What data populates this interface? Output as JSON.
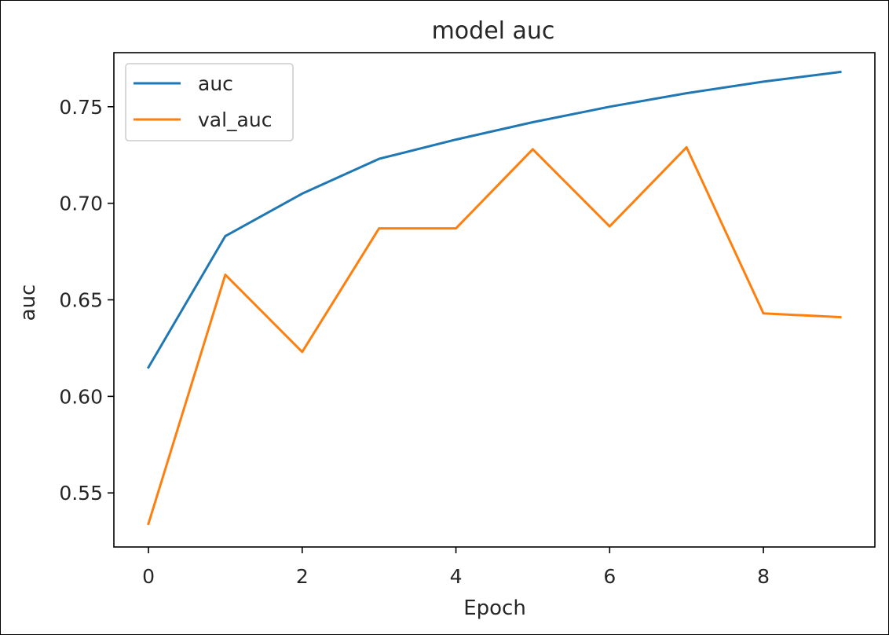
{
  "chart_data": {
    "type": "line",
    "title": "model auc",
    "xlabel": "Epoch",
    "ylabel": "auc",
    "xlim": [
      -0.45,
      9.45
    ],
    "ylim": [
      0.522,
      0.778
    ],
    "xticks": [
      0,
      2,
      4,
      6,
      8
    ],
    "yticks": [
      0.55,
      0.6,
      0.65,
      0.7,
      0.75
    ],
    "ytick_labels": [
      "0.55",
      "0.60",
      "0.65",
      "0.70",
      "0.75"
    ],
    "legend_position": "upper-left",
    "grid": false,
    "x": [
      0,
      1,
      2,
      3,
      4,
      5,
      6,
      7,
      8,
      9
    ],
    "series": [
      {
        "name": "auc",
        "color": "#1f77b4",
        "values": [
          0.615,
          0.683,
          0.705,
          0.723,
          0.733,
          0.742,
          0.75,
          0.757,
          0.763,
          0.768
        ]
      },
      {
        "name": "val_auc",
        "color": "#ff7f0e",
        "values": [
          0.534,
          0.663,
          0.623,
          0.687,
          0.687,
          0.728,
          0.688,
          0.729,
          0.643,
          0.641
        ]
      }
    ]
  }
}
